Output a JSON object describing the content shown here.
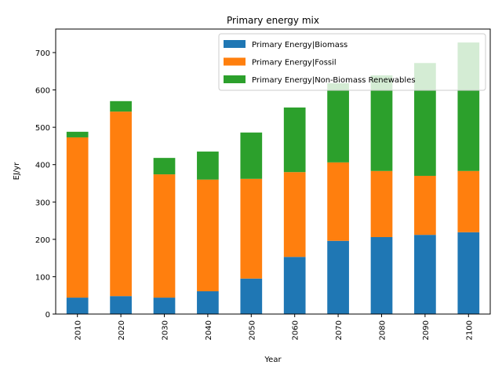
{
  "chart_data": {
    "type": "stacked_bar",
    "title": "Primary energy mix",
    "x_label": "Year",
    "y_label": "EJ/yr",
    "categories": [
      "2010",
      "2020",
      "2030",
      "2040",
      "2050",
      "2060",
      "2070",
      "2080",
      "2090",
      "2100"
    ],
    "series": [
      {
        "name": "Primary Energy|Biomass",
        "color": "#1f77b4",
        "values": [
          44,
          48,
          44,
          61,
          95,
          153,
          196,
          206,
          212,
          219
        ]
      },
      {
        "name": "Primary Energy|Fossil",
        "color": "#ff7f0e",
        "values": [
          429,
          494,
          330,
          299,
          267,
          227,
          210,
          177,
          158,
          164
        ]
      },
      {
        "name": "Primary Energy|Non-Biomass Renewables",
        "color": "#2ca02c",
        "values": [
          15,
          28,
          44,
          75,
          124,
          173,
          212,
          256,
          302,
          344
        ]
      }
    ],
    "ylim": [
      0,
      763
    ],
    "yticks": [
      0,
      100,
      200,
      300,
      400,
      500,
      600,
      700
    ],
    "legend": "upper right"
  }
}
